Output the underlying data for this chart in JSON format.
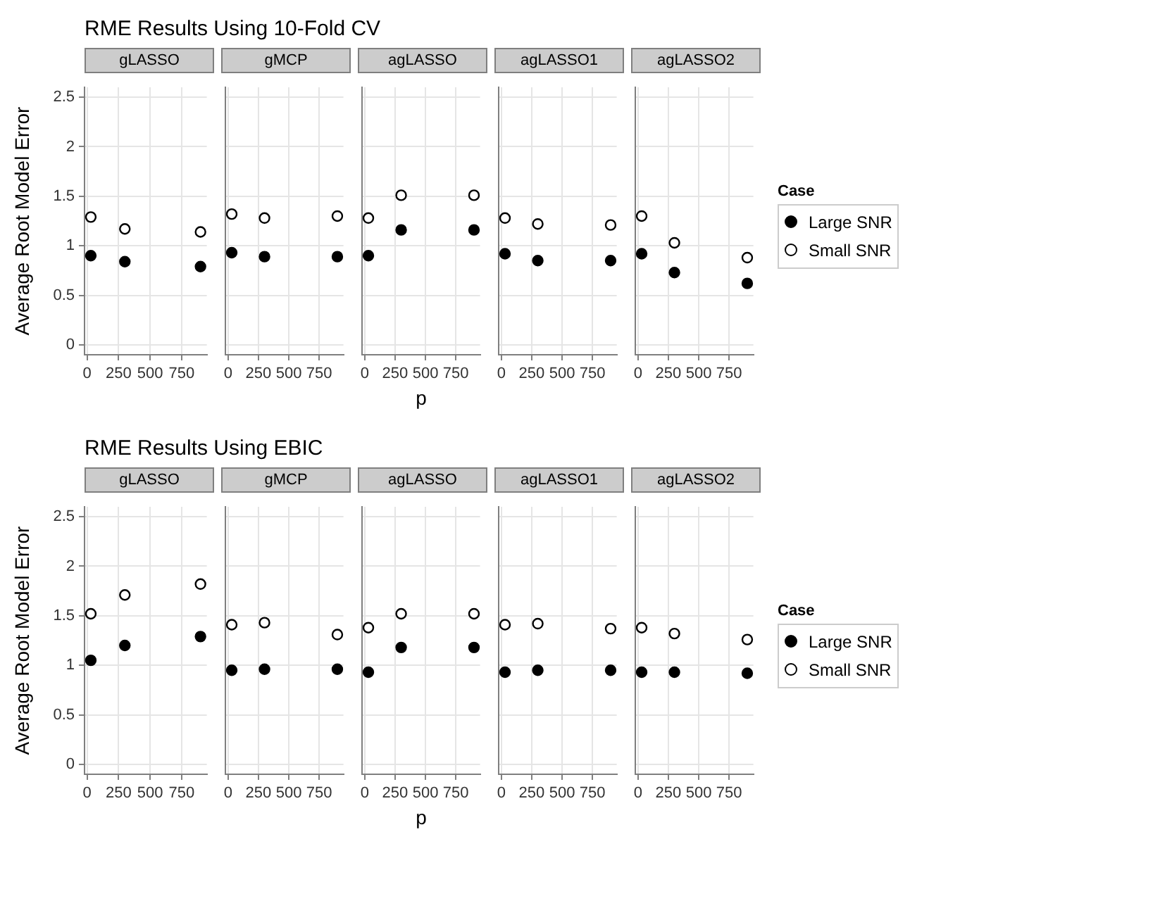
{
  "chart_data": [
    {
      "type": "scatter",
      "title": "RME Results Using 10-Fold CV",
      "subtitle": "gLASSO",
      "ylabel": "Average Root Model Error",
      "x": [
        30,
        300,
        900
      ],
      "xlim": [
        -20,
        950
      ],
      "xticks": [
        0,
        250,
        500,
        750
      ],
      "ylim": [
        -0.1,
        2.6
      ],
      "yticks": [
        0,
        0.5,
        1,
        1.5,
        2,
        2.5
      ],
      "grid": true,
      "marker": "circle",
      "legend": false,
      "series": [
        {
          "color": "#000000",
          "values": [
            0.9,
            0.84,
            0.79
          ]
        },
        {
          "color": "#ffffff",
          "values": [
            1.29,
            1.17,
            1.14
          ]
        }
      ]
    },
    {
      "type": "scatter",
      "subtitle": "gMCP",
      "x": [
        30,
        300,
        900
      ],
      "xlim": [
        -20,
        950
      ],
      "xticks": [
        0,
        250,
        500,
        750
      ],
      "ylim": [
        -0.1,
        2.6
      ],
      "yticks": [
        0,
        0.5,
        1,
        1.5,
        2,
        2.5
      ],
      "grid": true,
      "marker": "circle",
      "legend": false,
      "tick_labels": "x",
      "series": [
        {
          "color": "#000000",
          "values": [
            0.93,
            0.89,
            0.89
          ]
        },
        {
          "color": "#ffffff",
          "values": [
            1.32,
            1.28,
            1.3
          ]
        }
      ]
    },
    {
      "type": "scatter",
      "subtitle": "agLASSO",
      "xlabel": "p",
      "x": [
        30,
        300,
        900
      ],
      "xlim": [
        -20,
        950
      ],
      "xticks": [
        0,
        250,
        500,
        750
      ],
      "ylim": [
        -0.1,
        2.6
      ],
      "yticks": [
        0,
        0.5,
        1,
        1.5,
        2,
        2.5
      ],
      "grid": true,
      "marker": "circle",
      "legend": false,
      "tick_labels": "x",
      "series": [
        {
          "color": "#000000",
          "values": [
            0.9,
            1.16,
            1.16
          ]
        },
        {
          "color": "#ffffff",
          "values": [
            1.28,
            1.51,
            1.51
          ]
        }
      ]
    },
    {
      "type": "scatter",
      "subtitle": "agLASSO1",
      "x": [
        30,
        300,
        900
      ],
      "xlim": [
        -20,
        950
      ],
      "xticks": [
        0,
        250,
        500,
        750
      ],
      "ylim": [
        -0.1,
        2.6
      ],
      "yticks": [
        0,
        0.5,
        1,
        1.5,
        2,
        2.5
      ],
      "grid": true,
      "marker": "circle",
      "legend": false,
      "tick_labels": "x",
      "series": [
        {
          "color": "#000000",
          "values": [
            0.92,
            0.85,
            0.85
          ]
        },
        {
          "color": "#ffffff",
          "values": [
            1.28,
            1.22,
            1.21
          ]
        }
      ]
    },
    {
      "type": "scatter",
      "subtitle": "agLASSO2",
      "legend_title": "Case",
      "x": [
        30,
        300,
        900
      ],
      "xlim": [
        -20,
        950
      ],
      "xticks": [
        0,
        250,
        500,
        750
      ],
      "ylim": [
        -0.1,
        2.6
      ],
      "yticks": [
        0,
        0.5,
        1,
        1.5,
        2,
        2.5
      ],
      "grid": true,
      "marker": "circle",
      "legend": "right",
      "tick_labels": "x",
      "series": [
        {
          "name": "Large SNR",
          "color": "#000000",
          "values": [
            0.92,
            0.73,
            0.62
          ]
        },
        {
          "name": "Small SNR",
          "color": "#ffffff",
          "values": [
            1.3,
            1.03,
            0.88
          ]
        }
      ]
    },
    {
      "type": "scatter",
      "title": "RME Results Using EBIC",
      "subtitle": "gLASSO",
      "ylabel": "Average Root Model Error",
      "x": [
        30,
        300,
        900
      ],
      "xlim": [
        -20,
        950
      ],
      "xticks": [
        0,
        250,
        500,
        750
      ],
      "ylim": [
        -0.1,
        2.6
      ],
      "yticks": [
        0,
        0.5,
        1,
        1.5,
        2,
        2.5
      ],
      "grid": true,
      "marker": "circle",
      "legend": false,
      "series": [
        {
          "color": "#000000",
          "values": [
            1.05,
            1.2,
            1.29
          ]
        },
        {
          "color": "#ffffff",
          "values": [
            1.52,
            1.71,
            1.82
          ]
        }
      ]
    },
    {
      "type": "scatter",
      "subtitle": "gMCP",
      "x": [
        30,
        300,
        900
      ],
      "xlim": [
        -20,
        950
      ],
      "xticks": [
        0,
        250,
        500,
        750
      ],
      "ylim": [
        -0.1,
        2.6
      ],
      "yticks": [
        0,
        0.5,
        1,
        1.5,
        2,
        2.5
      ],
      "grid": true,
      "marker": "circle",
      "legend": false,
      "tick_labels": "x",
      "series": [
        {
          "color": "#000000",
          "values": [
            0.95,
            0.96,
            0.96
          ]
        },
        {
          "color": "#ffffff",
          "values": [
            1.41,
            1.43,
            1.31
          ]
        }
      ]
    },
    {
      "type": "scatter",
      "subtitle": "agLASSO",
      "xlabel": "p",
      "x": [
        30,
        300,
        900
      ],
      "xlim": [
        -20,
        950
      ],
      "xticks": [
        0,
        250,
        500,
        750
      ],
      "ylim": [
        -0.1,
        2.6
      ],
      "yticks": [
        0,
        0.5,
        1,
        1.5,
        2,
        2.5
      ],
      "grid": true,
      "marker": "circle",
      "legend": false,
      "tick_labels": "x",
      "series": [
        {
          "color": "#000000",
          "values": [
            0.93,
            1.18,
            1.18
          ]
        },
        {
          "color": "#ffffff",
          "values": [
            1.38,
            1.52,
            1.52
          ]
        }
      ]
    },
    {
      "type": "scatter",
      "subtitle": "agLASSO1",
      "x": [
        30,
        300,
        900
      ],
      "xlim": [
        -20,
        950
      ],
      "xticks": [
        0,
        250,
        500,
        750
      ],
      "ylim": [
        -0.1,
        2.6
      ],
      "yticks": [
        0,
        0.5,
        1,
        1.5,
        2,
        2.5
      ],
      "grid": true,
      "marker": "circle",
      "legend": false,
      "tick_labels": "x",
      "series": [
        {
          "color": "#000000",
          "values": [
            0.93,
            0.95,
            0.95
          ]
        },
        {
          "color": "#ffffff",
          "values": [
            1.41,
            1.42,
            1.37
          ]
        }
      ]
    },
    {
      "type": "scatter",
      "subtitle": "agLASSO2",
      "legend_title": "Case",
      "x": [
        30,
        300,
        900
      ],
      "xlim": [
        -20,
        950
      ],
      "xticks": [
        0,
        250,
        500,
        750
      ],
      "ylim": [
        -0.1,
        2.6
      ],
      "yticks": [
        0,
        0.5,
        1,
        1.5,
        2,
        2.5
      ],
      "grid": true,
      "marker": "circle",
      "legend": "right",
      "tick_labels": "x",
      "series": [
        {
          "name": "Large SNR",
          "color": "#000000",
          "values": [
            0.93,
            0.93,
            0.92
          ]
        },
        {
          "name": "Small SNR",
          "color": "#ffffff",
          "values": [
            1.38,
            1.32,
            1.26
          ]
        }
      ]
    }
  ]
}
